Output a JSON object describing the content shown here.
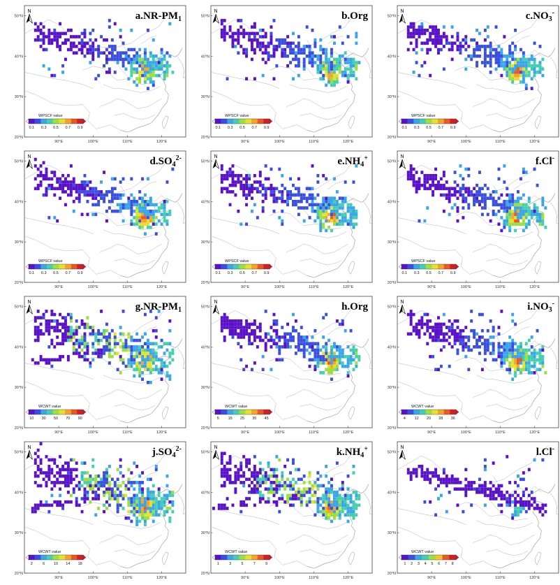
{
  "figure": {
    "panels": [
      {
        "id": "a",
        "title_main": "a.NR-PM",
        "title_sub": "1",
        "title_sup": "",
        "metric": "WPSCF value",
        "legend_values": [
          "0.1",
          "0.3",
          "0.5",
          "0.7",
          "0.9"
        ],
        "palette": "pscf",
        "variant": "pscf"
      },
      {
        "id": "b",
        "title_main": "b.Org",
        "title_sub": "",
        "title_sup": "",
        "metric": "WPSCF value",
        "legend_values": [
          "0.1",
          "0.3",
          "0.5",
          "0.7",
          "0.9"
        ],
        "palette": "pscf",
        "variant": "pscf"
      },
      {
        "id": "c",
        "title_main": "c.NO",
        "title_sub": "3",
        "title_sup": "-",
        "metric": "WPSCF value",
        "legend_values": [
          "0.1",
          "0.3",
          "0.5",
          "0.7",
          "0.9"
        ],
        "palette": "pscf",
        "variant": "pscf"
      },
      {
        "id": "d",
        "title_main": "d.SO",
        "title_sub": "4",
        "title_sup": "2-",
        "metric": "WPSCF value",
        "legend_values": [
          "0.1",
          "0.3",
          "0.5",
          "0.7",
          "0.9"
        ],
        "palette": "pscf",
        "variant": "pscf"
      },
      {
        "id": "e",
        "title_main": "e.NH",
        "title_sub": "4",
        "title_sup": "+",
        "metric": "WPSCF value",
        "legend_values": [
          "0.1",
          "0.3",
          "0.5",
          "0.7",
          "0.9"
        ],
        "palette": "pscf",
        "variant": "pscf"
      },
      {
        "id": "f",
        "title_main": "f.Cl",
        "title_sub": "",
        "title_sup": "-",
        "metric": "WPSCF value",
        "legend_values": [
          "0.1",
          "0.3",
          "0.5",
          "0.7",
          "0.9"
        ],
        "palette": "pscf",
        "variant": "pscf"
      },
      {
        "id": "g",
        "title_main": "g.NR-PM",
        "title_sub": "1",
        "title_sup": "",
        "metric": "WCWT value",
        "legend_values": [
          "10",
          "30",
          "50",
          "70",
          "90"
        ],
        "palette": "cwt",
        "variant": "cwt_big"
      },
      {
        "id": "h",
        "title_main": "h.Org",
        "title_sub": "",
        "title_sup": "",
        "metric": "WCWT value",
        "legend_values": [
          "5",
          "15",
          "25",
          "35",
          "45"
        ],
        "palette": "cwt",
        "variant": "cwt"
      },
      {
        "id": "i",
        "title_main": "i.NO",
        "title_sub": "3",
        "title_sup": "-",
        "metric": "WCWT value",
        "legend_values": [
          "4",
          "12",
          "20",
          "28",
          "36"
        ],
        "palette": "cwt",
        "variant": "cwt"
      },
      {
        "id": "j",
        "title_main": "j.SO",
        "title_sub": "4",
        "title_sup": "2-",
        "metric": "WCWT value",
        "legend_values": [
          "2",
          "6",
          "10",
          "14",
          "18"
        ],
        "palette": "cwt",
        "variant": "cwt_big"
      },
      {
        "id": "k",
        "title_main": "k.NH",
        "title_sub": "4",
        "title_sup": "+",
        "metric": "WCWT value",
        "legend_values": [
          "1",
          "3",
          "5",
          "7",
          "9"
        ],
        "palette": "cwt",
        "variant": "cwt_big"
      },
      {
        "id": "l",
        "title_main": "l.Cl",
        "title_sub": "",
        "title_sup": "-",
        "metric": "WCWT value",
        "legend_values": [
          "1",
          "2",
          "3",
          "4",
          "5",
          "6",
          "7",
          "8"
        ],
        "palette": "cwt8",
        "variant": "cl"
      }
    ],
    "lat_ticks": [
      "50°N",
      "40°N",
      "30°N",
      "20°N"
    ],
    "lon_ticks": [
      "90°E",
      "100°E",
      "110°E",
      "120°E"
    ],
    "north_label": "N",
    "palettes": {
      "pscf": [
        "#5a12c8",
        "#3a4fe0",
        "#3aa6e8",
        "#44d0b0",
        "#9be03c",
        "#e8e030",
        "#f2a52a",
        "#e85a20",
        "#d0202a"
      ],
      "cwt": [
        "#5a12c8",
        "#3a4fe0",
        "#3aa6e8",
        "#44d0b0",
        "#9be03c",
        "#e8e030",
        "#f2a52a",
        "#e85a20",
        "#d0202a"
      ],
      "cwt8": [
        "#5a12c8",
        "#3a4fe0",
        "#3aa6e8",
        "#44d0b0",
        "#9be03c",
        "#f2c62a",
        "#e85a20",
        "#d0202a"
      ]
    },
    "border_color": "#b4b4b4"
  }
}
